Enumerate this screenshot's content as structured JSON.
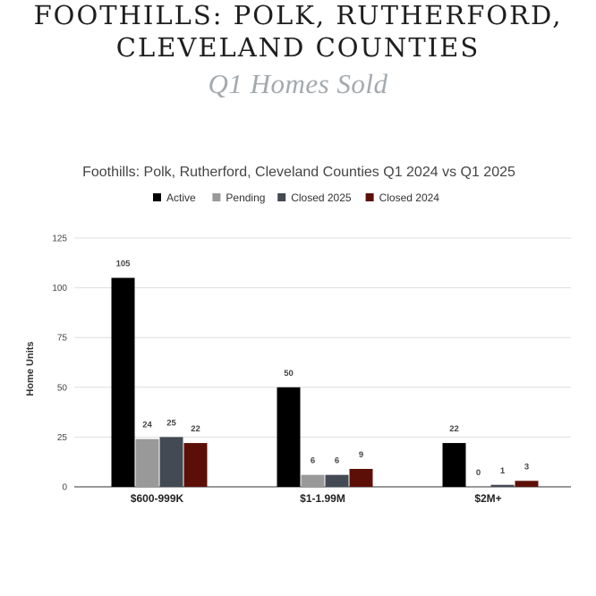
{
  "header": {
    "line1": "FOOTHILLS: POLK, RUTHERFORD,",
    "line2": "CLEVELAND COUNTIES",
    "subtitle": "Q1 Homes Sold"
  },
  "chart_data": {
    "type": "bar",
    "title": "Foothills: Polk, Rutherford, Cleveland Counties Q1 2024 vs Q1 2025",
    "xlabel": "",
    "ylabel": "Home Units",
    "ylim": [
      0,
      125
    ],
    "yticks": [
      0,
      25,
      50,
      75,
      100,
      125
    ],
    "grid": true,
    "legend_position": "top",
    "categories": [
      "$600-999K",
      "$1-1.99M",
      "$2M+"
    ],
    "series": [
      {
        "name": "Active",
        "color": "#000000",
        "values": [
          105,
          50,
          22
        ]
      },
      {
        "name": "Pending",
        "color": "#999999",
        "values": [
          24,
          6,
          0
        ]
      },
      {
        "name": "Closed 2025",
        "color": "#434a54",
        "values": [
          25,
          6,
          1
        ]
      },
      {
        "name": "Closed 2024",
        "color": "#5c0f06",
        "values": [
          22,
          9,
          3
        ]
      }
    ]
  }
}
